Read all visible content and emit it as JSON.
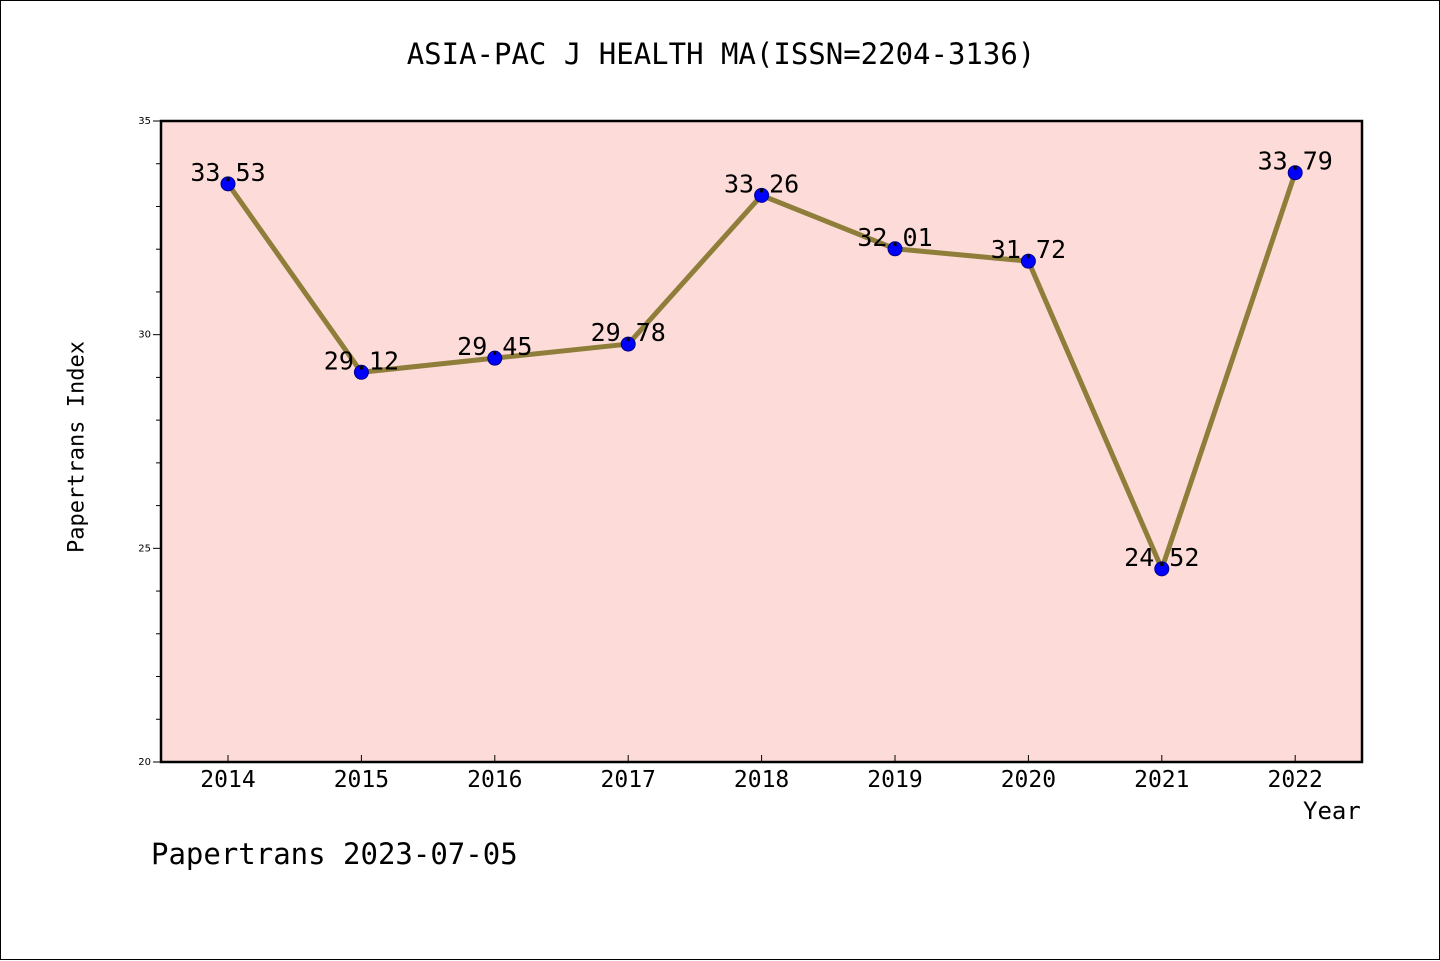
{
  "chart_data": {
    "type": "line",
    "title": "ASIA-PAC J HEALTH MA(ISSN=2204-3136)",
    "xlabel": "Year",
    "ylabel": "Papertrans Index",
    "categories": [
      "2014",
      "2015",
      "2016",
      "2017",
      "2018",
      "2019",
      "2020",
      "2021",
      "2022"
    ],
    "series": [
      {
        "values": [
          33.53,
          29.12,
          29.45,
          29.78,
          33.26,
          32.01,
          31.72,
          24.52,
          33.79
        ]
      }
    ],
    "data_labels": [
      "33.53",
      "29.12",
      "29.45",
      "29.78",
      "33.26",
      "32.01",
      "31.72",
      "24.52",
      "33.79"
    ],
    "ylim": [
      20,
      35
    ],
    "yticks": [
      20,
      25,
      30,
      35
    ],
    "grid": false,
    "legend": "none",
    "colors": {
      "plot_background": "#fddbd8",
      "line": "#8e7e3a",
      "marker": "#0000ff",
      "marker_edge": "#00008b"
    }
  },
  "footer": "Papertrans 2023-07-05"
}
